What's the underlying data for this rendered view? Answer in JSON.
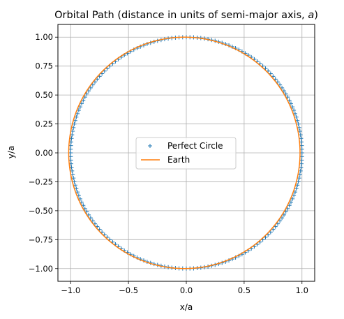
{
  "chart_data": {
    "type": "line",
    "title": "Orbital Path (distance in units of semi-major axis, ",
    "title_symbol": "a",
    "title_close": ")",
    "xlabel": "x/a",
    "ylabel": "y/a",
    "xlim": [
      -1.11,
      1.11
    ],
    "ylim": [
      -1.11,
      1.11
    ],
    "xticks": [
      -1.0,
      -0.5,
      0.0,
      0.5,
      1.0
    ],
    "xtick_labels": [
      "−1.0",
      "−0.5",
      "0.0",
      "0.5",
      "1.0"
    ],
    "yticks": [
      1.0,
      0.75,
      0.5,
      0.25,
      0.0,
      -0.25,
      -0.5,
      -0.75,
      -1.0
    ],
    "ytick_labels": [
      "1.00",
      "0.75",
      "0.50",
      "0.25",
      "0.00",
      "−0.25",
      "−0.50",
      "−0.75",
      "−1.00"
    ],
    "grid": true,
    "legend_position": "center",
    "series": [
      {
        "name": "Perfect Circle",
        "style": "markers",
        "marker": "+",
        "color": "#1f77b4",
        "shape": "circle",
        "radius": 1.0,
        "center": [
          0.0,
          0.0
        ],
        "num_points": 200
      },
      {
        "name": "Earth",
        "style": "line",
        "color": "#ff7f0e",
        "shape": "ellipse",
        "semi_major_axis": 1.0,
        "eccentricity": 0.0167,
        "focus_at_origin": true,
        "num_points": 400
      }
    ]
  }
}
